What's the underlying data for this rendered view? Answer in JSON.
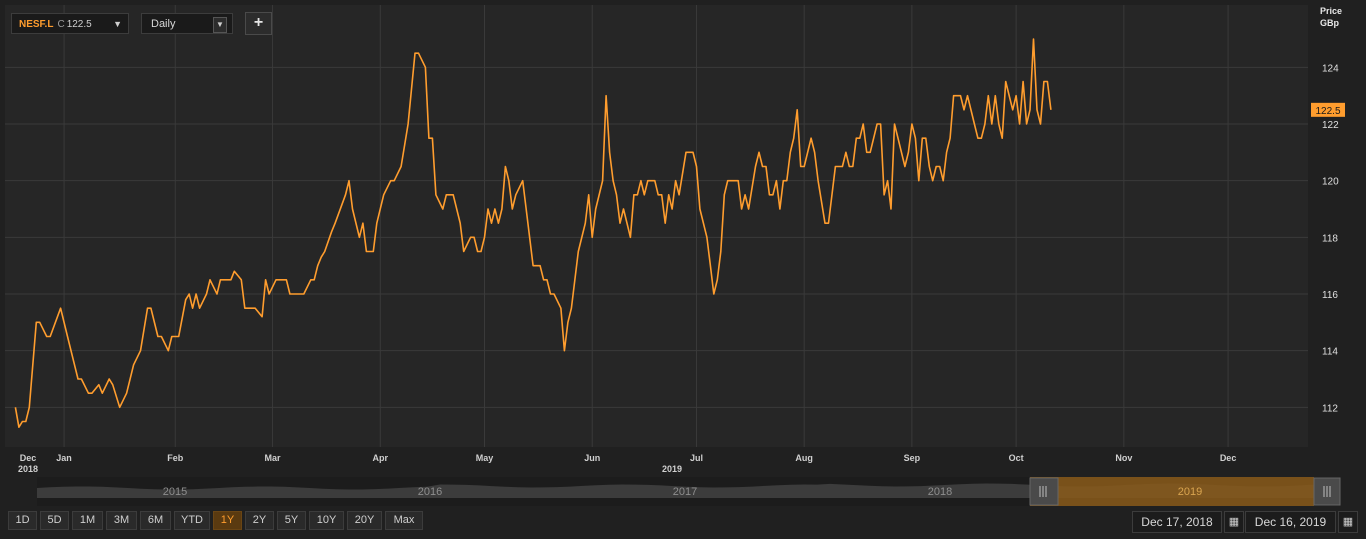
{
  "toolbar": {
    "ticker_symbol": "NESF.L",
    "ticker_label": "C",
    "ticker_value": "122.5",
    "dropdown_glyph": "▼",
    "period": "Daily",
    "add_label": "+"
  },
  "axis_header": {
    "line1": "Price",
    "line2": "GBp"
  },
  "range_buttons": [
    {
      "label": "1D"
    },
    {
      "label": "5D"
    },
    {
      "label": "1M"
    },
    {
      "label": "3M"
    },
    {
      "label": "6M"
    },
    {
      "label": "YTD"
    },
    {
      "label": "1Y",
      "active": true
    },
    {
      "label": "2Y"
    },
    {
      "label": "5Y"
    },
    {
      "label": "10Y"
    },
    {
      "label": "20Y"
    },
    {
      "label": "Max"
    }
  ],
  "date_range": {
    "start": "Dec 17, 2018",
    "end": "Dec 16, 2019"
  },
  "navigator": {
    "years": [
      "2015",
      "2016",
      "2017",
      "2018",
      "2019"
    ]
  },
  "colors": {
    "series": "#ff9d2e",
    "grid": "#3a3a3a",
    "background": "#262626",
    "nav_window": "#8a5a1a"
  },
  "chart_data": {
    "type": "line",
    "ylim": [
      110.6,
      126.2
    ],
    "y_ticks": [
      "112",
      "114",
      "116",
      "118",
      "120",
      "122",
      "124"
    ],
    "last_value": "122.5",
    "x_month_labels": [
      {
        "label": "Dec",
        "year": "2018",
        "day": 0
      },
      {
        "label": "Jan",
        "day": 14
      },
      {
        "label": "Feb",
        "day": 46
      },
      {
        "label": "Mar",
        "day": 74
      },
      {
        "label": "Apr",
        "day": 105
      },
      {
        "label": "May",
        "day": 135
      },
      {
        "label": "Jun",
        "day": 166
      },
      {
        "label": "Jul",
        "day": 196
      },
      {
        "label": "Aug",
        "day": 227
      },
      {
        "label": "Sep",
        "day": 258
      },
      {
        "label": "Oct",
        "day": 288
      },
      {
        "label": "Nov",
        "day": 319
      },
      {
        "label": "Dec",
        "day": 349
      }
    ],
    "year_label": "2019",
    "x_day_range": [
      -3,
      372
    ],
    "series": [
      {
        "points": [
          [
            0,
            112.0
          ],
          [
            1,
            111.3
          ],
          [
            2,
            111.5
          ],
          [
            3,
            111.5
          ],
          [
            4,
            112.0
          ],
          [
            6,
            115.0
          ],
          [
            7,
            115.0
          ],
          [
            9,
            114.5
          ],
          [
            10,
            114.5
          ],
          [
            13,
            115.5
          ],
          [
            15,
            114.5
          ],
          [
            17,
            113.5
          ],
          [
            18,
            113.0
          ],
          [
            19,
            113.0
          ],
          [
            21,
            112.5
          ],
          [
            22,
            112.5
          ],
          [
            24,
            112.8
          ],
          [
            25,
            112.5
          ],
          [
            27,
            113.0
          ],
          [
            28,
            112.8
          ],
          [
            30,
            112.0
          ],
          [
            32,
            112.5
          ],
          [
            34,
            113.5
          ],
          [
            36,
            114.0
          ],
          [
            38,
            115.5
          ],
          [
            39,
            115.5
          ],
          [
            41,
            114.5
          ],
          [
            42,
            114.5
          ],
          [
            44,
            114.0
          ],
          [
            45,
            114.5
          ],
          [
            47,
            114.5
          ],
          [
            49,
            115.8
          ],
          [
            50,
            116.0
          ],
          [
            51,
            115.5
          ],
          [
            52,
            116.0
          ],
          [
            53,
            115.5
          ],
          [
            55,
            116.0
          ],
          [
            56,
            116.5
          ],
          [
            58,
            116.0
          ],
          [
            59,
            116.5
          ],
          [
            62,
            116.5
          ],
          [
            63,
            116.8
          ],
          [
            65,
            116.5
          ],
          [
            66,
            115.5
          ],
          [
            69,
            115.5
          ],
          [
            71,
            115.2
          ],
          [
            72,
            116.5
          ],
          [
            73,
            116.0
          ],
          [
            75,
            116.5
          ],
          [
            78,
            116.5
          ],
          [
            79,
            116.0
          ],
          [
            83,
            116.0
          ],
          [
            85,
            116.5
          ],
          [
            86,
            116.5
          ],
          [
            87,
            117.0
          ],
          [
            88,
            117.3
          ],
          [
            89,
            117.5
          ],
          [
            91,
            118.2
          ],
          [
            92,
            118.5
          ],
          [
            95,
            119.5
          ],
          [
            96,
            120.0
          ],
          [
            97,
            119.0
          ],
          [
            99,
            118.0
          ],
          [
            100,
            118.5
          ],
          [
            101,
            117.5
          ],
          [
            103,
            117.5
          ],
          [
            104,
            118.5
          ],
          [
            106,
            119.5
          ],
          [
            108,
            120.0
          ],
          [
            109,
            120.0
          ],
          [
            111,
            120.5
          ],
          [
            113,
            122.0
          ],
          [
            115,
            124.5
          ],
          [
            116,
            124.5
          ],
          [
            118,
            124.0
          ],
          [
            119,
            121.5
          ],
          [
            120,
            121.5
          ],
          [
            121,
            119.5
          ],
          [
            123,
            119.0
          ],
          [
            124,
            119.5
          ],
          [
            125,
            119.5
          ],
          [
            126,
            119.5
          ],
          [
            128,
            118.5
          ],
          [
            129,
            117.5
          ],
          [
            131,
            118.0
          ],
          [
            132,
            118.0
          ],
          [
            133,
            117.5
          ],
          [
            134,
            117.5
          ],
          [
            135,
            118.0
          ],
          [
            136,
            119.0
          ],
          [
            137,
            118.5
          ],
          [
            138,
            119.0
          ],
          [
            139,
            118.5
          ],
          [
            140,
            119.0
          ],
          [
            141,
            120.5
          ],
          [
            142,
            120.0
          ],
          [
            143,
            119.0
          ],
          [
            144,
            119.5
          ],
          [
            146,
            120.0
          ],
          [
            149,
            117.0
          ],
          [
            151,
            117.0
          ],
          [
            152,
            116.5
          ],
          [
            153,
            116.5
          ],
          [
            154,
            116.0
          ],
          [
            155,
            116.0
          ],
          [
            157,
            115.5
          ],
          [
            158,
            114.0
          ],
          [
            159,
            115.0
          ],
          [
            160,
            115.5
          ],
          [
            162,
            117.5
          ],
          [
            164,
            118.5
          ],
          [
            165,
            119.5
          ],
          [
            166,
            118.0
          ],
          [
            167,
            119.0
          ],
          [
            169,
            120.0
          ],
          [
            170,
            123.0
          ],
          [
            171,
            121.0
          ],
          [
            172,
            120.0
          ],
          [
            173,
            119.5
          ],
          [
            174,
            118.5
          ],
          [
            175,
            119.0
          ],
          [
            176,
            118.5
          ],
          [
            177,
            118.0
          ],
          [
            178,
            119.5
          ],
          [
            179,
            119.5
          ],
          [
            180,
            120.0
          ],
          [
            181,
            119.5
          ],
          [
            182,
            120.0
          ],
          [
            184,
            120.0
          ],
          [
            185,
            119.5
          ],
          [
            186,
            119.5
          ],
          [
            187,
            118.5
          ],
          [
            188,
            119.5
          ],
          [
            189,
            119.0
          ],
          [
            190,
            120.0
          ],
          [
            191,
            119.5
          ],
          [
            193,
            121.0
          ],
          [
            194,
            121.0
          ],
          [
            195,
            121.0
          ],
          [
            196,
            120.5
          ],
          [
            197,
            119.0
          ],
          [
            199,
            118.0
          ],
          [
            200,
            117.0
          ],
          [
            201,
            116.0
          ],
          [
            202,
            116.5
          ],
          [
            203,
            117.5
          ],
          [
            204,
            119.5
          ],
          [
            205,
            120.0
          ],
          [
            208,
            120.0
          ],
          [
            209,
            119.0
          ],
          [
            210,
            119.5
          ],
          [
            211,
            119.0
          ],
          [
            213,
            120.5
          ],
          [
            214,
            121.0
          ],
          [
            215,
            120.5
          ],
          [
            216,
            120.5
          ],
          [
            217,
            119.5
          ],
          [
            218,
            119.5
          ],
          [
            219,
            120.0
          ],
          [
            220,
            119.0
          ],
          [
            221,
            120.0
          ],
          [
            222,
            120.0
          ],
          [
            223,
            121.0
          ],
          [
            224,
            121.5
          ],
          [
            225,
            122.5
          ],
          [
            226,
            120.5
          ],
          [
            227,
            120.5
          ],
          [
            229,
            121.5
          ],
          [
            230,
            121.0
          ],
          [
            231,
            120.0
          ],
          [
            233,
            118.5
          ],
          [
            234,
            118.5
          ],
          [
            236,
            120.5
          ],
          [
            237,
            120.5
          ],
          [
            238,
            120.5
          ],
          [
            239,
            121.0
          ],
          [
            240,
            120.5
          ],
          [
            241,
            120.5
          ],
          [
            242,
            121.5
          ],
          [
            243,
            121.5
          ],
          [
            244,
            122.0
          ],
          [
            245,
            121.0
          ],
          [
            246,
            121.0
          ],
          [
            248,
            122.0
          ],
          [
            249,
            122.0
          ],
          [
            250,
            119.5
          ],
          [
            251,
            120.0
          ],
          [
            252,
            119.0
          ],
          [
            253,
            122.0
          ],
          [
            254,
            121.5
          ],
          [
            256,
            120.5
          ],
          [
            257,
            121.0
          ],
          [
            258,
            122.0
          ],
          [
            259,
            121.5
          ],
          [
            260,
            120.0
          ],
          [
            261,
            121.5
          ],
          [
            262,
            121.5
          ],
          [
            263,
            120.5
          ],
          [
            264,
            120.0
          ],
          [
            265,
            120.5
          ],
          [
            266,
            120.5
          ],
          [
            267,
            120.0
          ],
          [
            268,
            121.0
          ],
          [
            269,
            121.5
          ],
          [
            270,
            123.0
          ],
          [
            271,
            123.0
          ],
          [
            272,
            123.0
          ],
          [
            273,
            122.5
          ],
          [
            274,
            123.0
          ],
          [
            276,
            122.0
          ],
          [
            277,
            121.5
          ],
          [
            278,
            121.5
          ],
          [
            279,
            122.0
          ],
          [
            280,
            123.0
          ],
          [
            281,
            122.0
          ],
          [
            282,
            123.0
          ],
          [
            283,
            122.0
          ],
          [
            284,
            121.5
          ],
          [
            285,
            123.5
          ],
          [
            286,
            123.0
          ],
          [
            287,
            122.5
          ],
          [
            288,
            123.0
          ],
          [
            289,
            122.0
          ],
          [
            290,
            123.5
          ],
          [
            291,
            122.0
          ],
          [
            292,
            122.5
          ],
          [
            293,
            125.0
          ],
          [
            294,
            122.5
          ],
          [
            295,
            122.0
          ],
          [
            296,
            123.5
          ],
          [
            297,
            123.5
          ],
          [
            298,
            122.5
          ]
        ]
      }
    ]
  }
}
